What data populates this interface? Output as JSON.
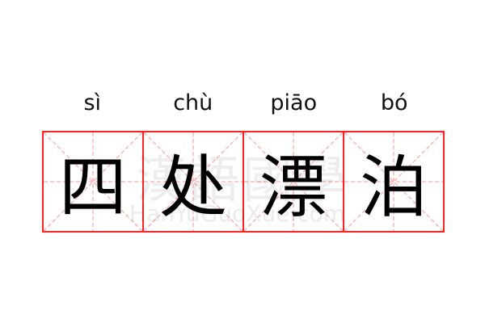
{
  "word": [
    {
      "pinyin": "sì",
      "hanzi": "四"
    },
    {
      "pinyin": "chù",
      "hanzi": "处"
    },
    {
      "pinyin": "piāo",
      "hanzi": "漂"
    },
    {
      "pinyin": "bó",
      "hanzi": "泊"
    }
  ],
  "watermark": {
    "chinese": "漢語國學",
    "latin": "HanYuGuoXue.com"
  },
  "colors": {
    "grid_border": "#ff2222",
    "guide_lines": "#ffaaaa",
    "text": "#000000"
  }
}
